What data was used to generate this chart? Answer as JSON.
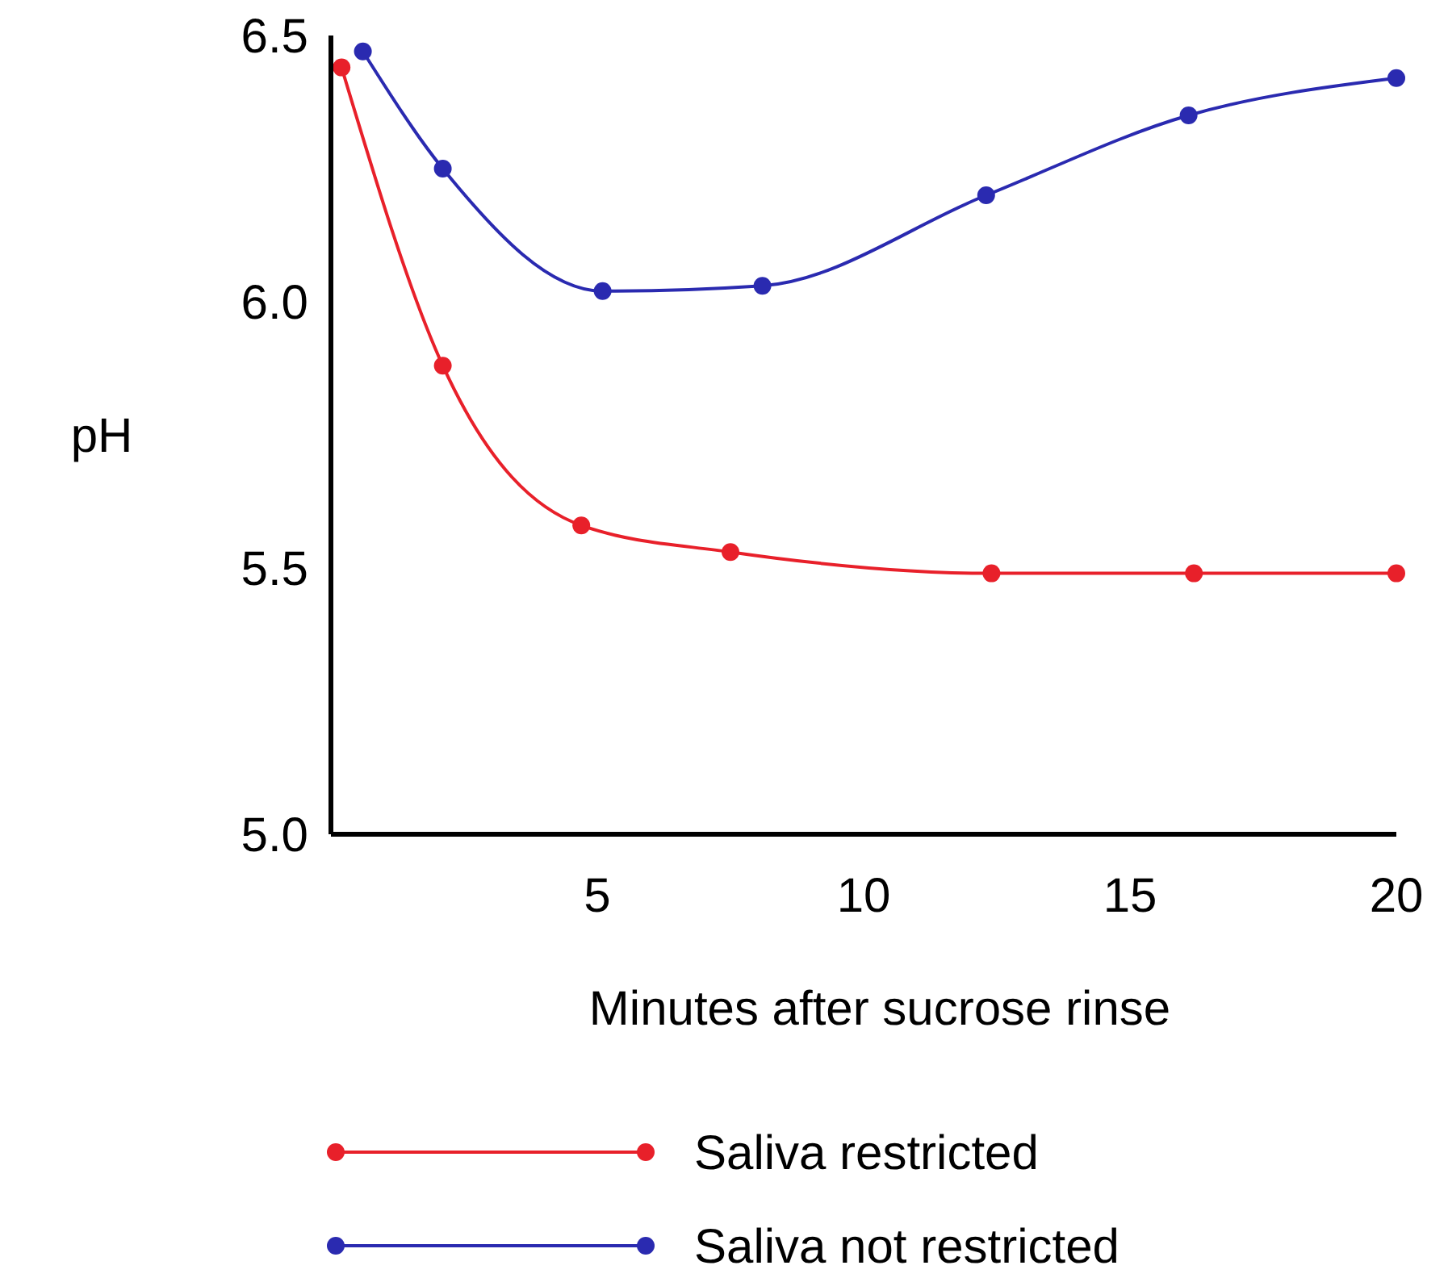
{
  "chart_data": {
    "type": "line",
    "xlabel": "Minutes after sucrose rinse",
    "ylabel": "pH",
    "xlim": [
      0,
      20
    ],
    "ylim": [
      5,
      6.5
    ],
    "xticks": [
      5,
      10,
      15,
      20
    ],
    "yticks": [
      {
        "value": 5,
        "label": "5.0"
      },
      5.5,
      {
        "value": 6,
        "label": "6.0"
      },
      6.5
    ],
    "grid": false,
    "legend": "bottom",
    "marker": "circle",
    "line_style": "solid",
    "series": [
      {
        "name": "Saliva restricted",
        "color": "#e8202a",
        "x": [
          0.2,
          2.1,
          4.7,
          7.5,
          12.4,
          16.2,
          20
        ],
        "values": [
          6.44,
          5.88,
          5.58,
          5.53,
          5.49,
          5.49,
          5.49
        ]
      },
      {
        "name": "Saliva not restricted",
        "color": "#2a2ab0",
        "x": [
          0.6,
          2.1,
          5.1,
          8.1,
          12.3,
          16.1,
          20
        ],
        "values": [
          6.47,
          6.25,
          6.02,
          6.03,
          6.2,
          6.35,
          6.42
        ]
      }
    ]
  }
}
